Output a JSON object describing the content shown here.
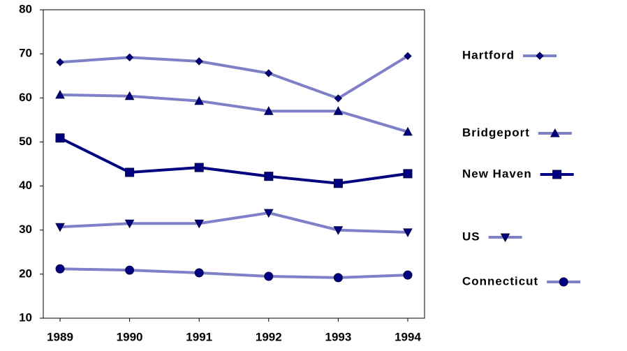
{
  "chart_data": {
    "type": "line",
    "categories": [
      "1989",
      "1990",
      "1991",
      "1992",
      "1993",
      "1994"
    ],
    "ylim": [
      10,
      80
    ],
    "yticks": [
      10,
      20,
      30,
      40,
      50,
      60,
      70,
      80
    ],
    "series": [
      {
        "name": "Hartford",
        "color": "#8080c8",
        "marker": "diamond",
        "values": [
          68.1,
          69.2,
          68.3,
          65.6,
          59.9,
          69.5
        ]
      },
      {
        "name": "Bridgeport",
        "color": "#8080c8",
        "marker": "triangle-up",
        "values": [
          60.7,
          60.4,
          59.3,
          57.0,
          57.0,
          52.3
        ]
      },
      {
        "name": "New Haven",
        "color": "#000080",
        "marker": "square",
        "values": [
          50.9,
          43.1,
          44.2,
          42.2,
          40.6,
          42.8
        ]
      },
      {
        "name": "US",
        "color": "#8080c8",
        "marker": "triangle-down",
        "values": [
          30.7,
          31.5,
          31.5,
          33.9,
          30.0,
          29.5
        ]
      },
      {
        "name": "Connecticut",
        "color": "#8080c8",
        "marker": "circle",
        "values": [
          21.2,
          20.9,
          20.3,
          19.5,
          19.2,
          19.8
        ]
      }
    ]
  }
}
